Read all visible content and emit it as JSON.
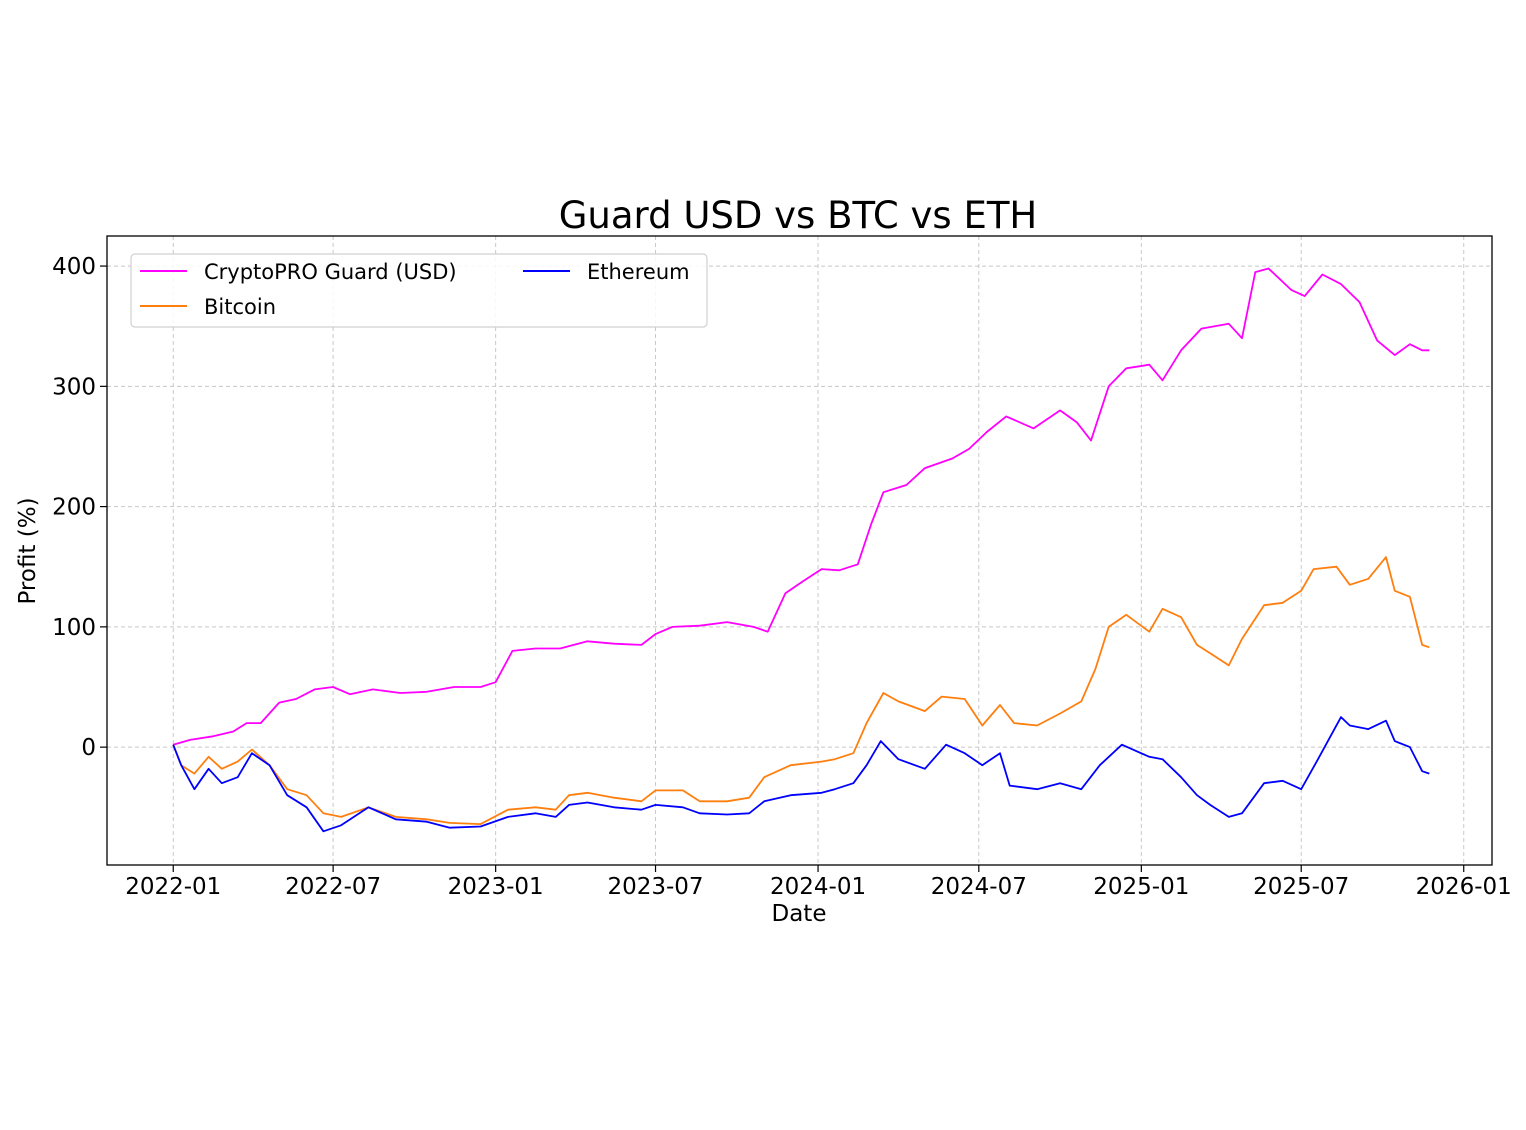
{
  "chart_data": {
    "type": "line",
    "title": "Guard USD vs BTC vs ETH",
    "xlabel": "Date",
    "ylabel": "Profit (%)",
    "x_ticks": [
      "2022-01",
      "2022-07",
      "2023-01",
      "2023-07",
      "2024-01",
      "2024-07",
      "2025-01",
      "2025-07",
      "2026-01"
    ],
    "y_ticks": [
      0,
      100,
      200,
      300,
      400
    ],
    "xlim": [
      "2021-10-18",
      "2026-02-02"
    ],
    "ylim": [
      -98,
      425
    ],
    "grid": true,
    "legend": {
      "placement": "upper-left",
      "columns": 2
    },
    "series": [
      {
        "name": "CryptoPRO Guard (USD)",
        "color": "#ff00ff",
        "points": [
          [
            "2022-01-01",
            2
          ],
          [
            "2022-01-20",
            6
          ],
          [
            "2022-02-15",
            9
          ],
          [
            "2022-03-10",
            13
          ],
          [
            "2022-03-25",
            20
          ],
          [
            "2022-04-10",
            20
          ],
          [
            "2022-05-01",
            37
          ],
          [
            "2022-05-20",
            40
          ],
          [
            "2022-06-10",
            48
          ],
          [
            "2022-07-01",
            50
          ],
          [
            "2022-07-20",
            44
          ],
          [
            "2022-08-15",
            48
          ],
          [
            "2022-09-15",
            45
          ],
          [
            "2022-10-15",
            46
          ],
          [
            "2022-11-15",
            50
          ],
          [
            "2022-12-15",
            50
          ],
          [
            "2023-01-01",
            54
          ],
          [
            "2023-01-20",
            80
          ],
          [
            "2023-02-15",
            82
          ],
          [
            "2023-03-15",
            82
          ],
          [
            "2023-04-15",
            88
          ],
          [
            "2023-05-15",
            86
          ],
          [
            "2023-06-15",
            85
          ],
          [
            "2023-07-01",
            94
          ],
          [
            "2023-07-20",
            100
          ],
          [
            "2023-08-20",
            101
          ],
          [
            "2023-09-20",
            104
          ],
          [
            "2023-10-20",
            100
          ],
          [
            "2023-11-05",
            96
          ],
          [
            "2023-11-25",
            128
          ],
          [
            "2023-12-15",
            138
          ],
          [
            "2024-01-05",
            148
          ],
          [
            "2024-01-25",
            147
          ],
          [
            "2024-02-15",
            152
          ],
          [
            "2024-03-01",
            185
          ],
          [
            "2024-03-15",
            212
          ],
          [
            "2024-04-10",
            218
          ],
          [
            "2024-05-01",
            232
          ],
          [
            "2024-06-01",
            240
          ],
          [
            "2024-06-20",
            248
          ],
          [
            "2024-07-10",
            262
          ],
          [
            "2024-08-01",
            275
          ],
          [
            "2024-09-01",
            265
          ],
          [
            "2024-10-01",
            280
          ],
          [
            "2024-10-20",
            270
          ],
          [
            "2024-11-05",
            255
          ],
          [
            "2024-11-25",
            300
          ],
          [
            "2024-12-15",
            315
          ],
          [
            "2025-01-10",
            318
          ],
          [
            "2025-01-25",
            305
          ],
          [
            "2025-02-15",
            330
          ],
          [
            "2025-03-10",
            348
          ],
          [
            "2025-04-10",
            352
          ],
          [
            "2025-04-25",
            340
          ],
          [
            "2025-05-10",
            395
          ],
          [
            "2025-05-25",
            398
          ],
          [
            "2025-06-20",
            380
          ],
          [
            "2025-07-05",
            375
          ],
          [
            "2025-07-25",
            393
          ],
          [
            "2025-08-15",
            385
          ],
          [
            "2025-09-05",
            370
          ],
          [
            "2025-09-25",
            338
          ],
          [
            "2025-10-15",
            326
          ],
          [
            "2025-11-01",
            335
          ],
          [
            "2025-11-15",
            330
          ],
          [
            "2025-11-23",
            330
          ]
        ]
      },
      {
        "name": "Bitcoin",
        "color": "#ff7f0e",
        "points": [
          [
            "2022-01-01",
            2
          ],
          [
            "2022-01-10",
            -15
          ],
          [
            "2022-01-25",
            -22
          ],
          [
            "2022-02-10",
            -8
          ],
          [
            "2022-02-25",
            -18
          ],
          [
            "2022-03-15",
            -12
          ],
          [
            "2022-03-31",
            -2
          ],
          [
            "2022-04-20",
            -15
          ],
          [
            "2022-05-10",
            -35
          ],
          [
            "2022-06-01",
            -40
          ],
          [
            "2022-06-20",
            -55
          ],
          [
            "2022-07-10",
            -58
          ],
          [
            "2022-08-10",
            -50
          ],
          [
            "2022-09-10",
            -58
          ],
          [
            "2022-10-15",
            -60
          ],
          [
            "2022-11-10",
            -63
          ],
          [
            "2022-12-15",
            -64
          ],
          [
            "2023-01-15",
            -52
          ],
          [
            "2023-02-15",
            -50
          ],
          [
            "2023-03-10",
            -52
          ],
          [
            "2023-03-25",
            -40
          ],
          [
            "2023-04-15",
            -38
          ],
          [
            "2023-05-15",
            -42
          ],
          [
            "2023-06-15",
            -45
          ],
          [
            "2023-07-01",
            -36
          ],
          [
            "2023-08-01",
            -36
          ],
          [
            "2023-08-20",
            -45
          ],
          [
            "2023-09-20",
            -45
          ],
          [
            "2023-10-15",
            -42
          ],
          [
            "2023-11-01",
            -25
          ],
          [
            "2023-12-01",
            -15
          ],
          [
            "2024-01-05",
            -12
          ],
          [
            "2024-01-20",
            -10
          ],
          [
            "2024-02-10",
            -5
          ],
          [
            "2024-02-25",
            20
          ],
          [
            "2024-03-15",
            45
          ],
          [
            "2024-04-01",
            38
          ],
          [
            "2024-05-01",
            30
          ],
          [
            "2024-05-20",
            42
          ],
          [
            "2024-06-15",
            40
          ],
          [
            "2024-07-05",
            18
          ],
          [
            "2024-07-25",
            35
          ],
          [
            "2024-08-10",
            20
          ],
          [
            "2024-09-05",
            18
          ],
          [
            "2024-10-01",
            28
          ],
          [
            "2024-10-25",
            38
          ],
          [
            "2024-11-10",
            65
          ],
          [
            "2024-11-25",
            100
          ],
          [
            "2024-12-15",
            110
          ],
          [
            "2025-01-10",
            96
          ],
          [
            "2025-01-25",
            115
          ],
          [
            "2025-02-15",
            108
          ],
          [
            "2025-03-05",
            85
          ],
          [
            "2025-03-20",
            78
          ],
          [
            "2025-04-10",
            68
          ],
          [
            "2025-04-25",
            90
          ],
          [
            "2025-05-20",
            118
          ],
          [
            "2025-06-10",
            120
          ],
          [
            "2025-07-01",
            130
          ],
          [
            "2025-07-15",
            148
          ],
          [
            "2025-08-10",
            150
          ],
          [
            "2025-08-25",
            135
          ],
          [
            "2025-09-15",
            140
          ],
          [
            "2025-10-05",
            158
          ],
          [
            "2025-10-15",
            130
          ],
          [
            "2025-11-01",
            125
          ],
          [
            "2025-11-15",
            85
          ],
          [
            "2025-11-23",
            83
          ]
        ]
      },
      {
        "name": "Ethereum",
        "color": "#0000ff",
        "points": [
          [
            "2022-01-01",
            2
          ],
          [
            "2022-01-10",
            -15
          ],
          [
            "2022-01-25",
            -35
          ],
          [
            "2022-02-10",
            -18
          ],
          [
            "2022-02-25",
            -30
          ],
          [
            "2022-03-15",
            -25
          ],
          [
            "2022-03-31",
            -5
          ],
          [
            "2022-04-20",
            -15
          ],
          [
            "2022-05-10",
            -40
          ],
          [
            "2022-06-01",
            -50
          ],
          [
            "2022-06-20",
            -70
          ],
          [
            "2022-07-10",
            -65
          ],
          [
            "2022-08-10",
            -50
          ],
          [
            "2022-09-10",
            -60
          ],
          [
            "2022-10-15",
            -62
          ],
          [
            "2022-11-10",
            -67
          ],
          [
            "2022-12-15",
            -66
          ],
          [
            "2023-01-15",
            -58
          ],
          [
            "2023-02-15",
            -55
          ],
          [
            "2023-03-10",
            -58
          ],
          [
            "2023-03-25",
            -48
          ],
          [
            "2023-04-15",
            -46
          ],
          [
            "2023-05-15",
            -50
          ],
          [
            "2023-06-15",
            -52
          ],
          [
            "2023-07-01",
            -48
          ],
          [
            "2023-08-01",
            -50
          ],
          [
            "2023-08-20",
            -55
          ],
          [
            "2023-09-20",
            -56
          ],
          [
            "2023-10-15",
            -55
          ],
          [
            "2023-11-01",
            -45
          ],
          [
            "2023-12-01",
            -40
          ],
          [
            "2024-01-05",
            -38
          ],
          [
            "2024-01-20",
            -35
          ],
          [
            "2024-02-10",
            -30
          ],
          [
            "2024-02-25",
            -15
          ],
          [
            "2024-03-12",
            5
          ],
          [
            "2024-04-01",
            -10
          ],
          [
            "2024-05-01",
            -18
          ],
          [
            "2024-05-25",
            2
          ],
          [
            "2024-06-15",
            -5
          ],
          [
            "2024-07-05",
            -15
          ],
          [
            "2024-07-25",
            -5
          ],
          [
            "2024-08-05",
            -32
          ],
          [
            "2024-09-05",
            -35
          ],
          [
            "2024-10-01",
            -30
          ],
          [
            "2024-10-25",
            -35
          ],
          [
            "2024-11-15",
            -15
          ],
          [
            "2024-12-10",
            2
          ],
          [
            "2025-01-10",
            -8
          ],
          [
            "2025-01-25",
            -10
          ],
          [
            "2025-02-15",
            -25
          ],
          [
            "2025-03-05",
            -40
          ],
          [
            "2025-03-20",
            -48
          ],
          [
            "2025-04-10",
            -58
          ],
          [
            "2025-04-25",
            -55
          ],
          [
            "2025-05-20",
            -30
          ],
          [
            "2025-06-10",
            -28
          ],
          [
            "2025-07-01",
            -35
          ],
          [
            "2025-07-20",
            -10
          ],
          [
            "2025-08-15",
            25
          ],
          [
            "2025-08-25",
            18
          ],
          [
            "2025-09-15",
            15
          ],
          [
            "2025-10-05",
            22
          ],
          [
            "2025-10-15",
            5
          ],
          [
            "2025-11-01",
            0
          ],
          [
            "2025-11-15",
            -20
          ],
          [
            "2025-11-23",
            -22
          ]
        ]
      }
    ]
  }
}
